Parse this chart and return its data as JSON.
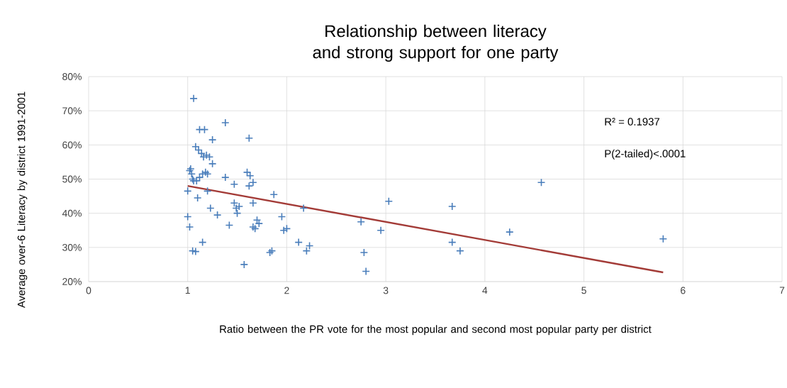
{
  "chart_data": {
    "type": "scatter",
    "title": "Relationship between literacy and strong support for one party",
    "xlabel": "Ratio between the PR vote for the most popular and second most popular party per district",
    "ylabel": "Average over-6 Literacy  by district 1991-2001",
    "xlim": [
      0,
      7
    ],
    "xticks": [
      0,
      1,
      2,
      3,
      4,
      5,
      6,
      7
    ],
    "ylim": [
      0.2,
      0.8
    ],
    "yticks": [
      {
        "value": 0.2,
        "label": "20%"
      },
      {
        "value": 0.3,
        "label": "30%"
      },
      {
        "value": 0.4,
        "label": "40%"
      },
      {
        "value": 0.5,
        "label": "50%"
      },
      {
        "value": 0.6,
        "label": "60%"
      },
      {
        "value": 0.7,
        "label": "70%"
      },
      {
        "value": 0.8,
        "label": "80%"
      }
    ],
    "grid": true,
    "annotations": [
      "R² = 0.1937",
      "P(2-tailed)<.0001"
    ],
    "series": [
      {
        "color": "#4a7ebb",
        "marker": "cross",
        "x": [
          1.06,
          1.38,
          1.12,
          1.17,
          1.25,
          1.62,
          1.08,
          1.11,
          1.14,
          1.16,
          1.19,
          1.22,
          1.25,
          1.02,
          1.03,
          1.04,
          1.05,
          1.06,
          1.09,
          1.12,
          1.15,
          1.18,
          1.2,
          1.38,
          1.6,
          1.63,
          1.66,
          1.0,
          1.2,
          1.1,
          1.47,
          1.62,
          1.66,
          1.87,
          1.23,
          1.3,
          1.42,
          1.47,
          1.49,
          1.5,
          1.52,
          1.66,
          1.68,
          1.72,
          1.7,
          1.0,
          1.02,
          1.15,
          1.05,
          1.08,
          1.57,
          1.83,
          1.85,
          1.95,
          1.97,
          2.0,
          2.12,
          2.17,
          2.2,
          2.23,
          2.75,
          2.78,
          2.8,
          2.95,
          3.03,
          3.67,
          3.67,
          3.75,
          4.25,
          4.57,
          5.8
        ],
        "values": [
          0.736,
          0.665,
          0.645,
          0.645,
          0.615,
          0.62,
          0.595,
          0.585,
          0.575,
          0.565,
          0.57,
          0.565,
          0.545,
          0.525,
          0.53,
          0.515,
          0.5,
          0.495,
          0.495,
          0.505,
          0.515,
          0.52,
          0.515,
          0.505,
          0.52,
          0.51,
          0.49,
          0.465,
          0.465,
          0.445,
          0.485,
          0.48,
          0.43,
          0.455,
          0.415,
          0.395,
          0.365,
          0.43,
          0.415,
          0.4,
          0.42,
          0.36,
          0.355,
          0.37,
          0.38,
          0.39,
          0.36,
          0.315,
          0.29,
          0.288,
          0.25,
          0.285,
          0.29,
          0.39,
          0.35,
          0.355,
          0.315,
          0.415,
          0.29,
          0.305,
          0.375,
          0.285,
          0.23,
          0.35,
          0.435,
          0.42,
          0.315,
          0.29,
          0.345,
          0.49,
          0.325
        ]
      },
      {
        "type": "line",
        "color": "#a33b37",
        "marker": "none",
        "x": [
          1.0,
          5.8
        ],
        "values": [
          0.48,
          0.227
        ]
      }
    ]
  }
}
